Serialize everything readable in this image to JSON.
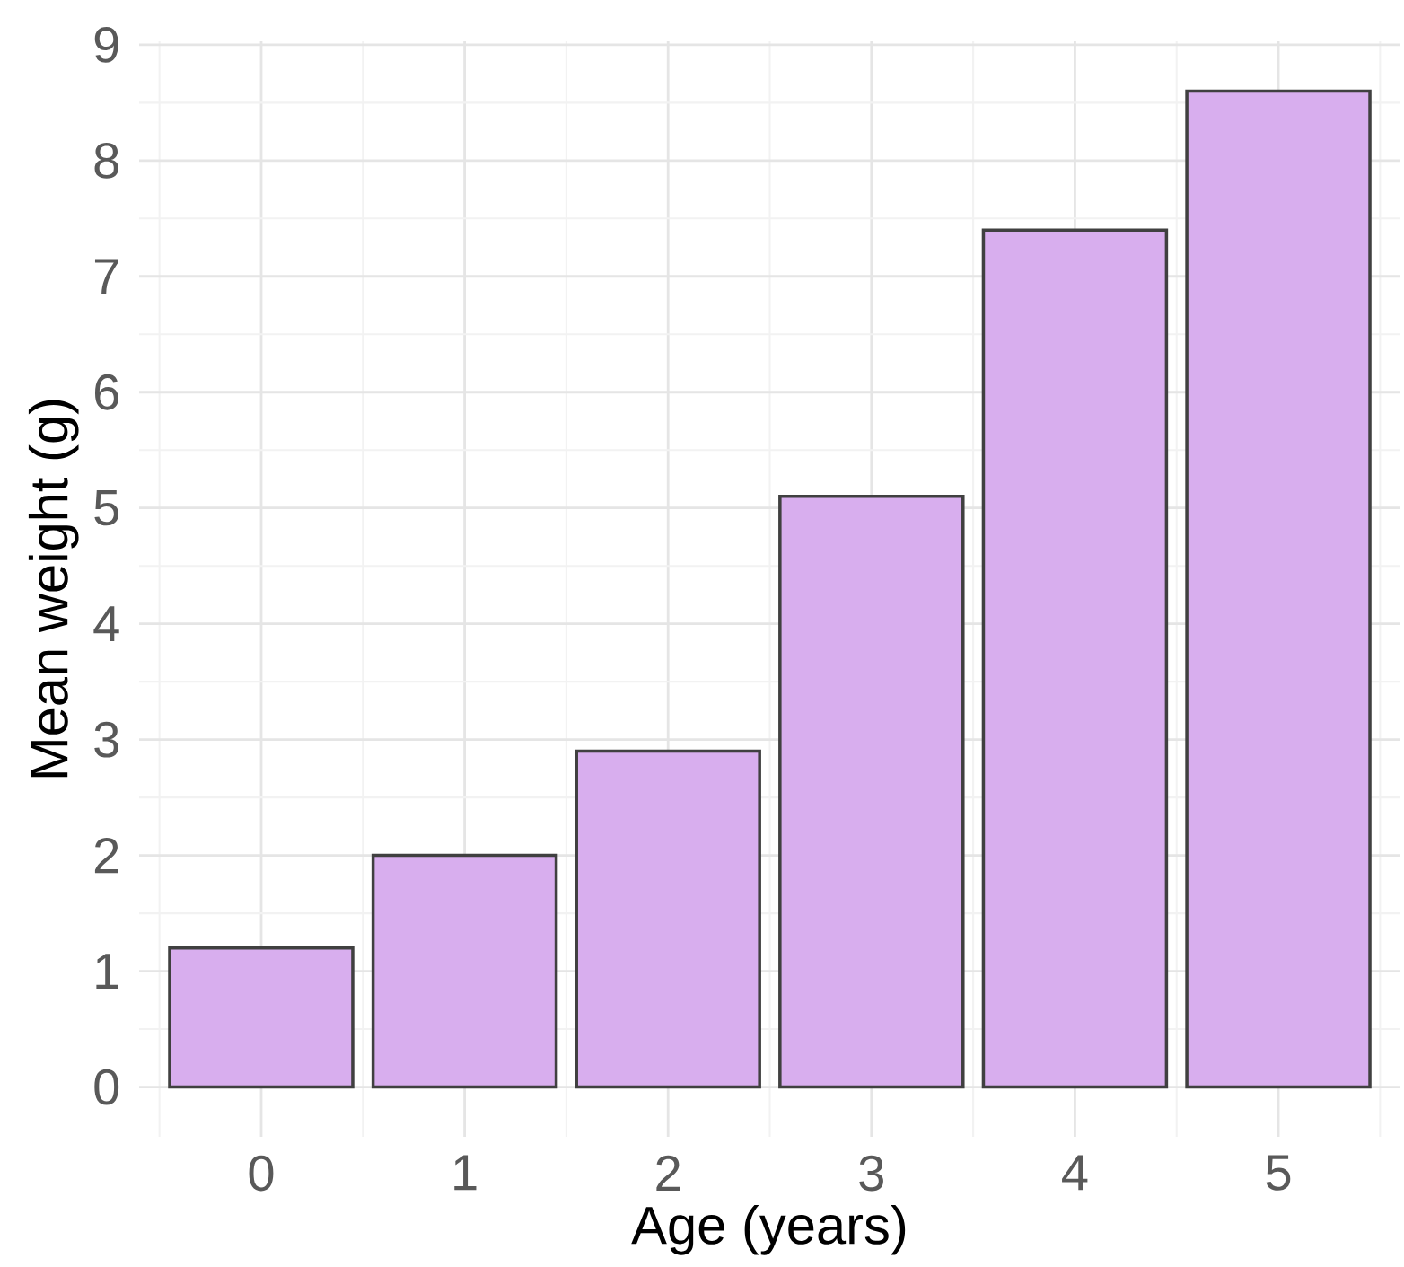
{
  "chart_data": {
    "type": "bar",
    "xlabel": "Age (years)",
    "ylabel": "Mean weight (g)",
    "categories": [
      "0",
      "1",
      "2",
      "3",
      "4",
      "5"
    ],
    "values": [
      1.2,
      2.0,
      2.9,
      5.1,
      7.4,
      8.6
    ],
    "color": "#d8aeee",
    "ylim": [
      -0.43,
      9.03
    ],
    "yticks": [
      0,
      1,
      2,
      3,
      4,
      5,
      6,
      7,
      8,
      9
    ],
    "grid": true
  }
}
